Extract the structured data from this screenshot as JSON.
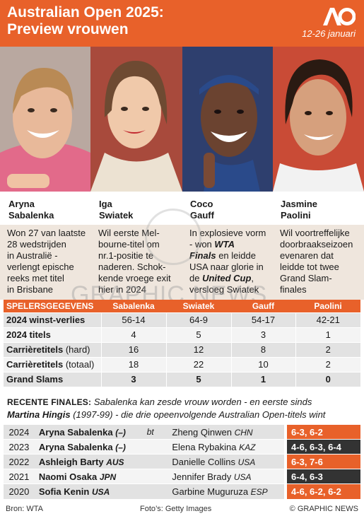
{
  "header": {
    "title_line1": "Australian Open 2025:",
    "title_line2": "Preview vrouwen",
    "logo": "AO",
    "dates": "12-26 januari"
  },
  "players": [
    {
      "first": "Aryna",
      "last": "Sabalenka",
      "desc": [
        "Won 27 van laatste",
        "28 wedstrijden",
        "in Australië -",
        "verlengt epische",
        "reeks met titel",
        "in Brisbane"
      ],
      "bg": "#c7b1a6"
    },
    {
      "first": "Iga",
      "last": "Swiatek",
      "desc": [
        "Wil eerste Mel-",
        "bourne-titel om",
        "nr.1-positie te",
        "naderen. Schok-",
        "kende vroege exit",
        "hier in 2024"
      ],
      "bg": "#b04a3c"
    },
    {
      "first": "Coco",
      "last": "Gauff",
      "desc_html": true,
      "desc": [
        "In explosieve vorm",
        "- won ",
        "WTA",
        "Finals",
        " en leidde",
        "USA naar glorie in",
        "de ",
        "United Cup",
        ",",
        "versloeg Swiatek"
      ],
      "bg": "#2c3d6b"
    },
    {
      "first": "Jasmine",
      "last": "Paolini",
      "desc": [
        "Wil voortreffelijke",
        "doorbraakseizoen",
        "evenaren dat",
        "leidde tot twee",
        "Grand Slam-",
        "finales"
      ],
      "bg": "#d04a33"
    }
  ],
  "watermark": "GRAPHIC NEWS",
  "stats": {
    "header": [
      "SPELERSGEGEVENS",
      "Sabalenka",
      "Swiatek",
      "Gauff",
      "Paolini"
    ],
    "rows": [
      {
        "label": "2024 winst-verlies",
        "label_small": "",
        "values": [
          "56-14",
          "64-9",
          "54-17",
          "42-21"
        ]
      },
      {
        "label": "2024 titels",
        "label_small": "",
        "values": [
          "4",
          "5",
          "3",
          "1"
        ]
      },
      {
        "label": "Carrièretitels",
        "label_small": " (hard)",
        "values": [
          "16",
          "12",
          "8",
          "2"
        ]
      },
      {
        "label": "Carrièretitels",
        "label_small": " (totaal)",
        "values": [
          "18",
          "22",
          "10",
          "2"
        ]
      },
      {
        "label": "Grand Slams",
        "label_small": "",
        "values": [
          "3",
          "5",
          "1",
          "0"
        ]
      }
    ]
  },
  "finals_note": {
    "head": "RECENTE FINALES:",
    "text1": " Sabalenka kan zesde vrouw worden - en eerste sinds",
    "name": "Martina Hingis",
    "text2": " (1997-99) - die drie opeenvolgende Australian Open-titels wint"
  },
  "finals": [
    {
      "year": "2024",
      "winner": "Aryna Sabalenka",
      "winner_ctry": "(–)",
      "bt": "bt",
      "loser": "Zheng Qinwen",
      "loser_ctry": "CHN",
      "score": "6-3, 6-2",
      "color": "#e8612a"
    },
    {
      "year": "2023",
      "winner": "Aryna Sabalenka",
      "winner_ctry": "(–)",
      "bt": "",
      "loser": "Elena Rybakina",
      "loser_ctry": "KAZ",
      "score": "4-6, 6-3, 6-4",
      "color": "#333333"
    },
    {
      "year": "2022",
      "winner": "Ashleigh Barty",
      "winner_ctry": "AUS",
      "bt": "",
      "loser": "Danielle Collins",
      "loser_ctry": "USA",
      "score": "6-3, 7-6",
      "color": "#e8612a"
    },
    {
      "year": "2021",
      "winner": "Naomi Osaka",
      "winner_ctry": "JPN",
      "bt": "",
      "loser": "Jennifer Brady",
      "loser_ctry": "USA",
      "score": "6-4, 6-3",
      "color": "#333333"
    },
    {
      "year": "2020",
      "winner": "Sofia Kenin",
      "winner_ctry": "USA",
      "bt": "",
      "loser": "Garbine Muguruza",
      "loser_ctry": "ESP",
      "score": "4-6, 6-2, 6-2",
      "color": "#e8612a"
    }
  ],
  "footer": {
    "source": "Bron: WTA",
    "photos": "Foto’s: Getty Images",
    "copyright": "© GRAPHIC NEWS"
  }
}
